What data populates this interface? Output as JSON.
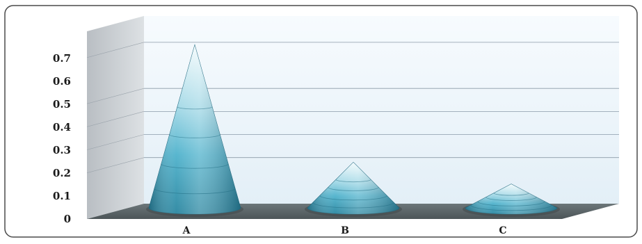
{
  "chart_data": {
    "type": "bar",
    "shape": "3d-cone",
    "categories": [
      "A",
      "B",
      "C"
    ],
    "values": [
      0.75,
      0.21,
      0.11
    ],
    "y_ticks": [
      "0",
      "0.1",
      "0.2",
      "0.3",
      "0.4",
      "0.5",
      "0.6",
      "0.7"
    ],
    "ylim": [
      0,
      0.8
    ],
    "grid": true,
    "legend": "none",
    "colors": {
      "cone_base": "#2e8fa8",
      "cone_mid": "#5cc0d6",
      "cone_light": "#e9f6fb",
      "floor": "#5f6a6e",
      "back_wall": "#eef6fb",
      "side_wall": "#c8ccd0",
      "border": "#4a4a4a"
    }
  }
}
